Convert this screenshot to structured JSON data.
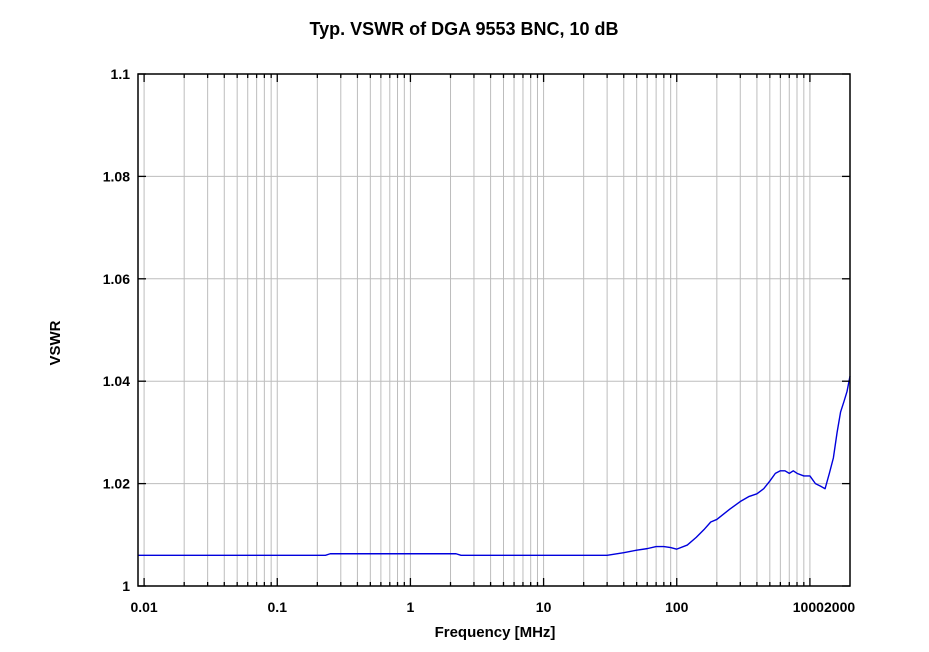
{
  "chart_data": {
    "type": "line",
    "title": "Typ. VSWR of DGA 9553 BNC, 10 dB",
    "xlabel": "Frequency [MHz]",
    "ylabel": "VSWR",
    "x_scale": "log",
    "xlim": [
      0.009,
      2000
    ],
    "ylim": [
      1,
      1.1
    ],
    "grid": true,
    "x_ticks": [
      {
        "value": 0.01,
        "label": "0.01"
      },
      {
        "value": 0.1,
        "label": "0.1"
      },
      {
        "value": 1,
        "label": "1"
      },
      {
        "value": 10,
        "label": "10"
      },
      {
        "value": 100,
        "label": "100"
      },
      {
        "value": 1000,
        "label": "1000"
      },
      {
        "value": 2000,
        "label": "2000"
      }
    ],
    "y_ticks": [
      {
        "value": 1,
        "label": "1"
      },
      {
        "value": 1.02,
        "label": "1.02"
      },
      {
        "value": 1.04,
        "label": "1.04"
      },
      {
        "value": 1.06,
        "label": "1.06"
      },
      {
        "value": 1.08,
        "label": "1.08"
      },
      {
        "value": 1.1,
        "label": "1.1"
      }
    ],
    "series": [
      {
        "color": "#0000dd",
        "x": [
          0.009,
          0.1,
          0.23,
          0.25,
          1,
          2.2,
          2.4,
          2.6,
          10,
          30,
          40,
          50,
          60,
          70,
          80,
          90,
          100,
          120,
          140,
          160,
          180,
          200,
          250,
          300,
          350,
          400,
          450,
          500,
          550,
          600,
          650,
          700,
          750,
          800,
          900,
          1000,
          1100,
          1200,
          1300,
          1400,
          1500,
          1600,
          1700,
          1800,
          1900,
          2000
        ],
        "y": [
          1.006,
          1.006,
          1.006,
          1.0063,
          1.0063,
          1.0063,
          1.006,
          1.006,
          1.006,
          1.006,
          1.0065,
          1.007,
          1.0073,
          1.0077,
          1.0077,
          1.0075,
          1.0072,
          1.008,
          1.0095,
          1.011,
          1.0125,
          1.013,
          1.015,
          1.0165,
          1.0175,
          1.018,
          1.019,
          1.0205,
          1.022,
          1.0225,
          1.0225,
          1.022,
          1.0225,
          1.022,
          1.0215,
          1.0215,
          1.02,
          1.0195,
          1.019,
          1.022,
          1.025,
          1.03,
          1.034,
          1.036,
          1.038,
          1.041
        ]
      }
    ]
  }
}
